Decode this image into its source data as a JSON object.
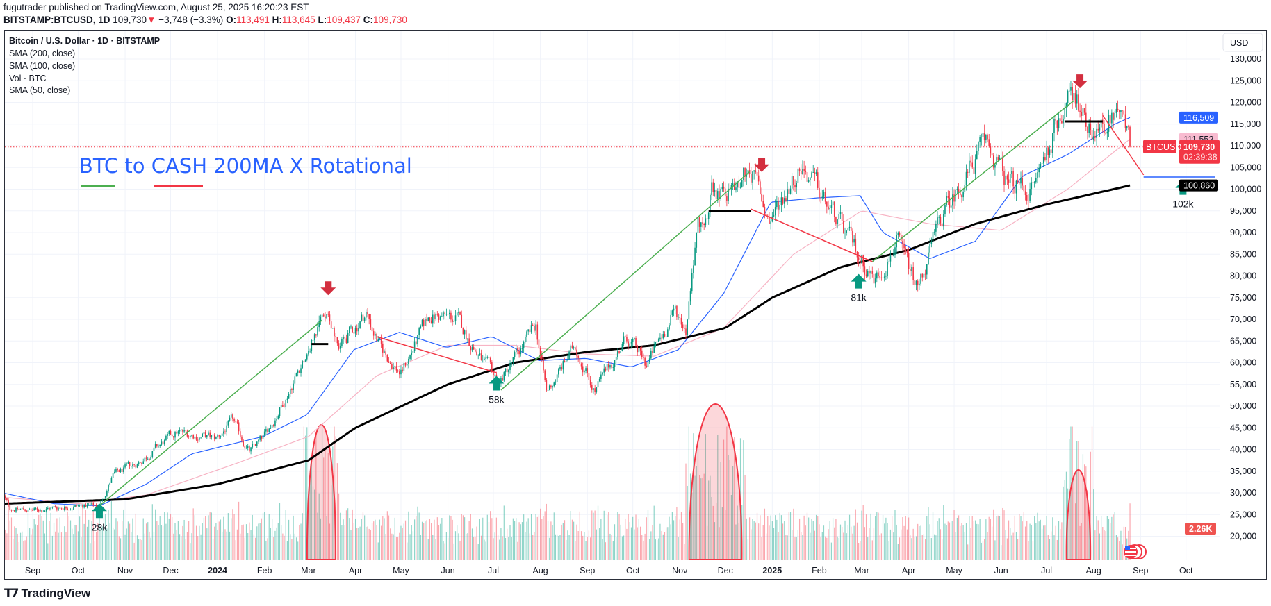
{
  "header": {
    "publisher_line": "fugutrader published on TradingView.com, August 25, 2025 16:20:23 EST",
    "symbol": "BITSTAMP:BTCUSD, 1D",
    "last": "109,730",
    "change": "−3,748 (−3.3%)",
    "o_label": "O:",
    "o": "113,491",
    "h_label": "H:",
    "h": "113,645",
    "l_label": "L:",
    "l": "109,437",
    "c_label": "C:",
    "c": "109,730"
  },
  "legend": {
    "title": "Bitcoin / U.S. Dollar · 1D · BITSTAMP",
    "items": [
      "SMA (200, close)",
      "SMA (100, close)",
      "Vol · BTC",
      "SMA (50, close)"
    ]
  },
  "footer": {
    "brand": "TradingView",
    "logo": "TV"
  },
  "chart_data": {
    "type": "candlestick",
    "title": "BTC to CASH 200MA X Rotational",
    "currency": "USD",
    "ylim": [
      15000,
      135000
    ],
    "y_ticks": [
      "130,000",
      "125,000",
      "120,000",
      "115,000",
      "110,000",
      "105,000",
      "100,000",
      "95,000",
      "90,000",
      "85,000",
      "80,000",
      "75,000",
      "70,000",
      "65,000",
      "60,000",
      "55,000",
      "50,000",
      "45,000",
      "40,000",
      "35,000",
      "30,000",
      "25,000",
      "20,000"
    ],
    "x_range": [
      "2023-08-12",
      "2025-11-05"
    ],
    "x_ticks": [
      {
        "date": "2023-09-01",
        "label": "Sep"
      },
      {
        "date": "2023-10-01",
        "label": "Oct"
      },
      {
        "date": "2023-11-01",
        "label": "Nov"
      },
      {
        "date": "2023-12-01",
        "label": "Dec"
      },
      {
        "date": "2024-01-01",
        "label": "2024",
        "bold": true
      },
      {
        "date": "2024-02-01",
        "label": "Feb"
      },
      {
        "date": "2024-03-01",
        "label": "Mar"
      },
      {
        "date": "2024-04-01",
        "label": "Apr"
      },
      {
        "date": "2024-05-01",
        "label": "May"
      },
      {
        "date": "2024-06-01",
        "label": "Jun"
      },
      {
        "date": "2024-07-01",
        "label": "Jul"
      },
      {
        "date": "2024-08-01",
        "label": "Aug"
      },
      {
        "date": "2024-09-01",
        "label": "Sep"
      },
      {
        "date": "2024-10-01",
        "label": "Oct"
      },
      {
        "date": "2024-11-01",
        "label": "Nov"
      },
      {
        "date": "2024-12-01",
        "label": "Dec"
      },
      {
        "date": "2025-01-01",
        "label": "2025",
        "bold": true
      },
      {
        "date": "2025-02-01",
        "label": "Feb"
      },
      {
        "date": "2025-03-01",
        "label": "Mar"
      },
      {
        "date": "2025-04-01",
        "label": "Apr"
      },
      {
        "date": "2025-05-01",
        "label": "May"
      },
      {
        "date": "2025-06-01",
        "label": "Jun"
      },
      {
        "date": "2025-07-01",
        "label": "Jul"
      },
      {
        "date": "2025-08-01",
        "label": "Aug"
      },
      {
        "date": "2025-09-01",
        "label": "Sep"
      },
      {
        "date": "2025-10-01",
        "label": "Oct"
      }
    ],
    "grid": true,
    "colors": {
      "up": "#089981",
      "down": "#f23645",
      "sma50": "#2962ff",
      "sma100": "#f7b3c4",
      "sma200": "#000000",
      "title": "#2962ff",
      "trend_up": "#4caf50",
      "trend_down": "#f23645",
      "target": "#2962ff"
    },
    "close_path": [
      [
        "2023-08-12",
        29400
      ],
      [
        "2023-08-17",
        26500
      ],
      [
        "2023-09-01",
        25900
      ],
      [
        "2023-09-15",
        26600
      ],
      [
        "2023-10-01",
        27000
      ],
      [
        "2023-10-15",
        27000
      ],
      [
        "2023-10-24",
        34000
      ],
      [
        "2023-11-10",
        37000
      ],
      [
        "2023-12-05",
        44000
      ],
      [
        "2023-12-31",
        42500
      ],
      [
        "2024-01-11",
        46500
      ],
      [
        "2024-01-22",
        39500
      ],
      [
        "2024-02-01",
        43000
      ],
      [
        "2024-02-15",
        52000
      ],
      [
        "2024-02-28",
        62000
      ],
      [
        "2024-03-14",
        73000
      ],
      [
        "2024-03-20",
        63000
      ],
      [
        "2024-04-08",
        71500
      ],
      [
        "2024-04-18",
        63000
      ],
      [
        "2024-05-01",
        57500
      ],
      [
        "2024-05-20",
        71000
      ],
      [
        "2024-06-07",
        70000
      ],
      [
        "2024-06-24",
        60000
      ],
      [
        "2024-07-05",
        55500
      ],
      [
        "2024-07-29",
        68500
      ],
      [
        "2024-08-05",
        53000
      ],
      [
        "2024-08-24",
        64000
      ],
      [
        "2024-09-06",
        53500
      ],
      [
        "2024-09-27",
        66000
      ],
      [
        "2024-10-10",
        59500
      ],
      [
        "2024-10-29",
        72000
      ],
      [
        "2024-11-05",
        68000
      ],
      [
        "2024-11-13",
        90000
      ],
      [
        "2024-11-22",
        99000
      ],
      [
        "2024-12-05",
        100000
      ],
      [
        "2024-12-17",
        106000
      ],
      [
        "2024-12-30",
        92500
      ],
      [
        "2025-01-20",
        106000
      ],
      [
        "2025-02-03",
        98000
      ],
      [
        "2025-02-25",
        86000
      ],
      [
        "2025-03-10",
        79000
      ],
      [
        "2025-03-24",
        88000
      ],
      [
        "2025-04-07",
        77000
      ],
      [
        "2025-04-22",
        93000
      ],
      [
        "2025-05-22",
        111000
      ],
      [
        "2025-06-05",
        101500
      ],
      [
        "2025-06-22",
        100000
      ],
      [
        "2025-07-14",
        121500
      ],
      [
        "2025-07-22",
        118500
      ],
      [
        "2025-08-02",
        113000
      ],
      [
        "2025-08-14",
        118000
      ],
      [
        "2025-08-25",
        109730
      ]
    ],
    "last_date": "2025-08-25",
    "sma50": [
      [
        "2023-08-12",
        30000
      ],
      [
        "2023-09-15",
        27500
      ],
      [
        "2023-10-15",
        27000
      ],
      [
        "2023-11-15",
        32000
      ],
      [
        "2023-12-15",
        39000
      ],
      [
        "2024-01-31",
        43000
      ],
      [
        "2024-02-29",
        48000
      ],
      [
        "2024-03-31",
        63000
      ],
      [
        "2024-04-30",
        67000
      ],
      [
        "2024-05-31",
        63500
      ],
      [
        "2024-06-30",
        66000
      ],
      [
        "2024-07-31",
        60500
      ],
      [
        "2024-08-31",
        61000
      ],
      [
        "2024-09-30",
        59000
      ],
      [
        "2024-10-31",
        63000
      ],
      [
        "2024-11-30",
        76000
      ],
      [
        "2024-12-31",
        97000
      ],
      [
        "2025-01-31",
        98000
      ],
      [
        "2025-02-28",
        98500
      ],
      [
        "2025-03-15",
        90000
      ],
      [
        "2025-04-15",
        84000
      ],
      [
        "2025-05-15",
        88000
      ],
      [
        "2025-06-15",
        103000
      ],
      [
        "2025-07-15",
        108000
      ],
      [
        "2025-08-15",
        115000
      ],
      [
        "2025-08-25",
        116509
      ]
    ],
    "sma100": [
      [
        "2023-08-12",
        29000
      ],
      [
        "2023-10-01",
        27500
      ],
      [
        "2023-11-15",
        29500
      ],
      [
        "2024-01-15",
        37000
      ],
      [
        "2024-03-01",
        43000
      ],
      [
        "2024-04-15",
        57000
      ],
      [
        "2024-06-01",
        64000
      ],
      [
        "2024-07-15",
        64000
      ],
      [
        "2024-09-01",
        62000
      ],
      [
        "2024-10-15",
        61500
      ],
      [
        "2024-11-30",
        68000
      ],
      [
        "2025-01-15",
        85000
      ],
      [
        "2025-03-01",
        95000
      ],
      [
        "2025-04-15",
        92000
      ],
      [
        "2025-06-01",
        90500
      ],
      [
        "2025-07-15",
        100000
      ],
      [
        "2025-08-25",
        111552
      ]
    ],
    "sma200": [
      [
        "2023-08-12",
        27500
      ],
      [
        "2023-11-01",
        28500
      ],
      [
        "2024-01-01",
        32000
      ],
      [
        "2024-03-01",
        37500
      ],
      [
        "2024-04-01",
        45000
      ],
      [
        "2024-06-01",
        55000
      ],
      [
        "2024-07-15",
        60000
      ],
      [
        "2024-09-01",
        62500
      ],
      [
        "2024-10-15",
        64000
      ],
      [
        "2024-12-01",
        68000
      ],
      [
        "2025-01-01",
        75000
      ],
      [
        "2025-02-15",
        82000
      ],
      [
        "2025-04-01",
        86000
      ],
      [
        "2025-05-15",
        92000
      ],
      [
        "2025-07-01",
        96500
      ],
      [
        "2025-08-25",
        100860
      ]
    ],
    "trend_lines": [
      {
        "kind": "up",
        "from": [
          "2023-10-15",
          27000
        ],
        "to": [
          "2024-03-10",
          69800
        ]
      },
      {
        "kind": "up",
        "from": [
          "2024-07-06",
          53700
        ],
        "to": [
          "2024-12-17",
          104000
        ]
      },
      {
        "kind": "up",
        "from": [
          "2025-03-08",
          83300
        ],
        "to": [
          "2025-07-19",
          120400
        ]
      },
      {
        "kind": "down",
        "from": [
          "2024-04-15",
          66000
        ],
        "to": [
          "2024-07-03",
          57700
        ]
      },
      {
        "kind": "down",
        "from": [
          "2024-12-18",
          95400
        ],
        "to": [
          "2025-03-08",
          83300
        ]
      },
      {
        "kind": "down",
        "from": [
          "2025-08-07",
          117000
        ],
        "to": [
          "2025-09-03",
          103300
        ]
      }
    ],
    "levels": [
      {
        "from": "2024-03-03",
        "to": "2024-03-14",
        "price": 64300
      },
      {
        "from": "2024-11-20",
        "to": "2024-12-18",
        "price": 95000
      },
      {
        "from": "2025-07-13",
        "to": "2025-08-07",
        "price": 115600
      }
    ],
    "target_line": {
      "from": "2025-09-03",
      "to": "2025-10-20",
      "price": 102800
    },
    "sell_arrows": [
      [
        "2024-03-14",
        77000
      ],
      [
        "2024-12-25",
        105400
      ],
      [
        "2025-07-23",
        124700
      ]
    ],
    "buy_arrows": [
      {
        "date": "2023-10-15",
        "price": 25800,
        "label": "28k"
      },
      {
        "date": "2024-07-03",
        "price": 55200,
        "label": "58k"
      },
      {
        "date": "2025-02-27",
        "price": 78700,
        "label": "81k"
      },
      {
        "date": "2025-09-29",
        "price": 100300,
        "label": "102k"
      }
    ],
    "volume_highlights": [
      [
        "2024-03-01",
        "2024-03-18"
      ],
      [
        "2024-11-08",
        "2024-12-11"
      ],
      [
        "2025-07-15",
        "2025-07-29"
      ]
    ],
    "price_tags": {
      "sma50": "116,509",
      "sma100": "111,552",
      "last": "109,730",
      "countdown": "02:39:38",
      "symbol": "BTCUSD",
      "sma200": "100,860",
      "volume": "2.26K"
    }
  }
}
